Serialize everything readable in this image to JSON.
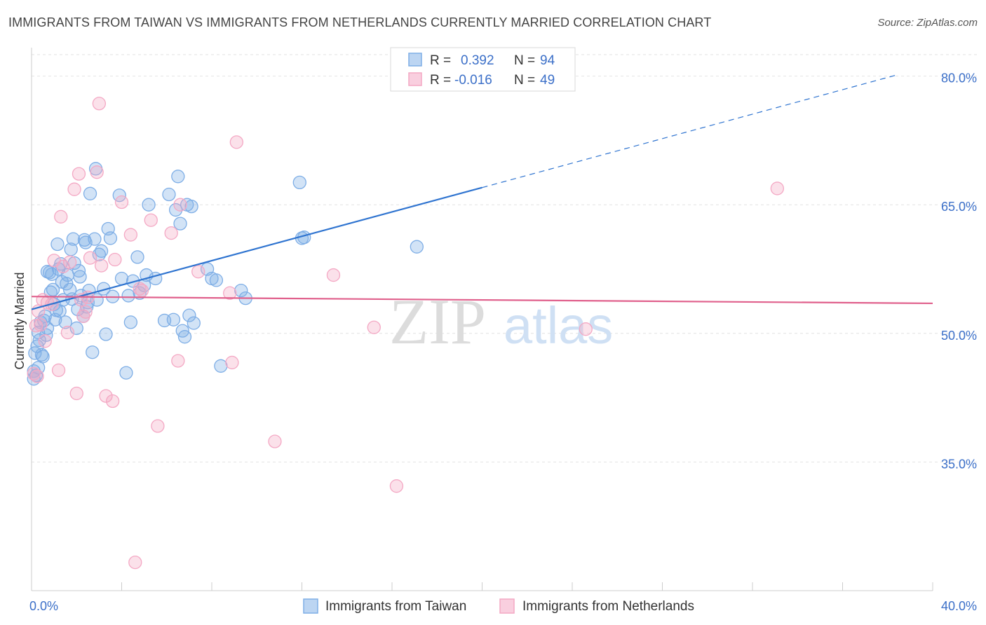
{
  "title": "IMMIGRANTS FROM TAIWAN VS IMMIGRANTS FROM NETHERLANDS CURRENTLY MARRIED CORRELATION CHART",
  "source": "Source: ZipAtlas.com",
  "watermark": {
    "zip": "ZIP",
    "atlas": "atlas"
  },
  "chart_data": {
    "type": "scatter",
    "title": "IMMIGRANTS FROM TAIWAN VS IMMIGRANTS FROM NETHERLANDS CURRENTLY MARRIED CORRELATION CHART",
    "xlabel": "",
    "ylabel": "Currently Married",
    "xlim": [
      0,
      40
    ],
    "ylim": [
      20,
      82.5
    ],
    "x_tick_labels": [
      "0.0%",
      "40.0%"
    ],
    "y_ticks": [
      35,
      50,
      65,
      80
    ],
    "y_tick_labels": [
      "35.0%",
      "50.0%",
      "65.0%",
      "80.0%"
    ],
    "grid": true,
    "legend_top": [
      {
        "r_label": "R =",
        "r_value": "0.392",
        "n_label": "N =",
        "n_value": "94"
      },
      {
        "r_label": "R =",
        "r_value": "-0.016",
        "n_label": "N =",
        "n_value": "49"
      }
    ],
    "series": [
      {
        "name": "Immigrants from Taiwan",
        "color": "#7eaee6",
        "line_color": "#2f74d0",
        "trend": {
          "x0": 0,
          "y0": 52.8,
          "x1": 20,
          "y1": 67.0,
          "dash_to_x": 38.5,
          "dash_to_y": 80.2
        },
        "points": [
          [
            0.1,
            45.6
          ],
          [
            0.15,
            47.7
          ],
          [
            0.2,
            45.1
          ],
          [
            0.25,
            48.5
          ],
          [
            0.3,
            50.1
          ],
          [
            0.35,
            49.2
          ],
          [
            0.4,
            51.3
          ],
          [
            0.5,
            47.3
          ],
          [
            0.55,
            51.5
          ],
          [
            0.6,
            52.0
          ],
          [
            0.65,
            49.8
          ],
          [
            0.7,
            50.6
          ],
          [
            0.8,
            57.1
          ],
          [
            0.85,
            54.8
          ],
          [
            0.9,
            56.9
          ],
          [
            1.0,
            53.4
          ],
          [
            1.05,
            51.6
          ],
          [
            1.1,
            52.7
          ],
          [
            1.15,
            60.4
          ],
          [
            1.2,
            57.5
          ],
          [
            1.3,
            58.1
          ],
          [
            1.35,
            56.0
          ],
          [
            1.4,
            53.9
          ],
          [
            1.5,
            51.3
          ],
          [
            1.6,
            56.8
          ],
          [
            1.7,
            55.1
          ],
          [
            1.75,
            59.8
          ],
          [
            1.8,
            54.0
          ],
          [
            1.85,
            61.0
          ],
          [
            1.9,
            58.2
          ],
          [
            2.0,
            50.6
          ],
          [
            2.05,
            52.8
          ],
          [
            2.1,
            57.3
          ],
          [
            2.15,
            56.6
          ],
          [
            2.2,
            54.4
          ],
          [
            2.3,
            52.0
          ],
          [
            2.35,
            60.9
          ],
          [
            2.4,
            60.6
          ],
          [
            2.5,
            53.6
          ],
          [
            2.55,
            55.0
          ],
          [
            2.6,
            66.3
          ],
          [
            2.7,
            47.8
          ],
          [
            2.8,
            61.0
          ],
          [
            2.85,
            69.2
          ],
          [
            2.9,
            53.9
          ],
          [
            3.0,
            59.2
          ],
          [
            3.1,
            59.6
          ],
          [
            3.3,
            49.9
          ],
          [
            3.4,
            62.2
          ],
          [
            3.5,
            61.1
          ],
          [
            3.6,
            54.3
          ],
          [
            3.9,
            66.1
          ],
          [
            4.0,
            56.4
          ],
          [
            4.2,
            45.4
          ],
          [
            4.3,
            54.4
          ],
          [
            4.4,
            51.3
          ],
          [
            4.5,
            56.1
          ],
          [
            4.7,
            58.9
          ],
          [
            4.8,
            54.7
          ],
          [
            5.1,
            56.8
          ],
          [
            5.2,
            65.0
          ],
          [
            5.5,
            56.4
          ],
          [
            5.9,
            51.5
          ],
          [
            6.1,
            66.2
          ],
          [
            6.3,
            51.6
          ],
          [
            6.4,
            64.4
          ],
          [
            6.5,
            68.3
          ],
          [
            6.6,
            62.8
          ],
          [
            6.7,
            50.3
          ],
          [
            6.8,
            49.6
          ],
          [
            6.9,
            65.0
          ],
          [
            7.0,
            52.1
          ],
          [
            7.1,
            64.8
          ],
          [
            7.2,
            51.2
          ],
          [
            7.8,
            57.5
          ],
          [
            8.0,
            56.4
          ],
          [
            8.2,
            56.2
          ],
          [
            8.4,
            46.2
          ],
          [
            9.3,
            55.0
          ],
          [
            9.5,
            54.1
          ],
          [
            11.9,
            67.6
          ],
          [
            12.0,
            61.1
          ],
          [
            12.1,
            61.2
          ],
          [
            17.1,
            60.1
          ],
          [
            0.1,
            44.7
          ],
          [
            0.3,
            46.0
          ],
          [
            0.45,
            47.5
          ],
          [
            0.7,
            57.2
          ],
          [
            1.25,
            52.6
          ],
          [
            2.45,
            53.1
          ],
          [
            3.2,
            55.2
          ],
          [
            5.0,
            55.6
          ],
          [
            0.95,
            55.1
          ],
          [
            1.55,
            55.8
          ]
        ]
      },
      {
        "name": "Immigrants from Netherlands",
        "color": "#f4a8c4",
        "line_color": "#e0608c",
        "trend": {
          "x0": 0,
          "y0": 54.3,
          "x1": 40,
          "y1": 53.5
        },
        "points": [
          [
            0.1,
            45.3
          ],
          [
            0.2,
            50.9
          ],
          [
            0.3,
            52.6
          ],
          [
            0.4,
            51.0
          ],
          [
            0.5,
            53.9
          ],
          [
            0.6,
            49.1
          ],
          [
            0.7,
            53.6
          ],
          [
            0.9,
            53.4
          ],
          [
            1.0,
            58.5
          ],
          [
            1.2,
            45.7
          ],
          [
            1.3,
            63.6
          ],
          [
            1.4,
            57.8
          ],
          [
            1.6,
            50.1
          ],
          [
            1.7,
            58.3
          ],
          [
            1.9,
            66.8
          ],
          [
            2.0,
            43.0
          ],
          [
            2.1,
            68.6
          ],
          [
            2.2,
            53.9
          ],
          [
            2.4,
            52.5
          ],
          [
            2.5,
            54.2
          ],
          [
            2.6,
            58.8
          ],
          [
            2.9,
            68.8
          ],
          [
            3.0,
            76.8
          ],
          [
            3.1,
            57.9
          ],
          [
            3.3,
            42.7
          ],
          [
            3.6,
            42.1
          ],
          [
            3.7,
            58.6
          ],
          [
            4.0,
            65.3
          ],
          [
            4.4,
            61.5
          ],
          [
            4.6,
            23.3
          ],
          [
            4.8,
            55.2
          ],
          [
            4.9,
            55.0
          ],
          [
            5.3,
            63.2
          ],
          [
            5.6,
            39.2
          ],
          [
            6.2,
            61.7
          ],
          [
            6.5,
            46.8
          ],
          [
            6.6,
            65.0
          ],
          [
            7.4,
            57.2
          ],
          [
            8.8,
            54.7
          ],
          [
            8.9,
            46.6
          ],
          [
            9.1,
            72.3
          ],
          [
            10.8,
            37.4
          ],
          [
            13.4,
            56.8
          ],
          [
            15.2,
            50.7
          ],
          [
            16.2,
            32.2
          ],
          [
            24.6,
            50.5
          ],
          [
            33.1,
            66.9
          ],
          [
            0.25,
            45.0
          ],
          [
            2.3,
            52.0
          ]
        ]
      }
    ]
  }
}
